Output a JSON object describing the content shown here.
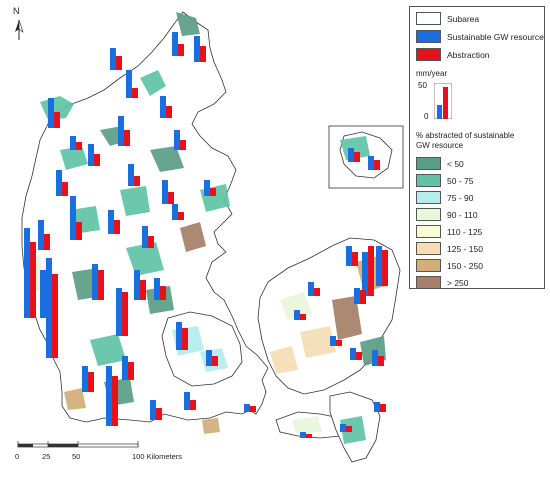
{
  "north_label": "N",
  "legend": {
    "subarea": "Subarea",
    "sustainable": "Sustainable GW resource",
    "abstraction": "Abstraction",
    "unit_label": "mm/year",
    "unit_max": "50",
    "unit_min": "0",
    "pct_title_1": "% abstracted of sustainable",
    "pct_title_2": "GW resource",
    "classes": [
      {
        "label": "< 50",
        "color": "#5b9e86"
      },
      {
        "label": "50 - 75",
        "color": "#5fc4a6"
      },
      {
        "label": "75 - 90",
        "color": "#b5ecec"
      },
      {
        "label": "90 - 110",
        "color": "#e9f7dc"
      },
      {
        "label": "110 - 125",
        "color": "#fbfbd6"
      },
      {
        "label": "125 - 150",
        "color": "#f5deb6"
      },
      {
        "label": "150 - 250",
        "color": "#d3ae78"
      },
      {
        "label": "> 250",
        "color": "#a67f68"
      }
    ],
    "blue_color": "#1a6fe0",
    "red_color": "#e8101a"
  },
  "scale": {
    "ticks": [
      "0",
      "25",
      "50",
      "100 Kilometers"
    ]
  }
}
